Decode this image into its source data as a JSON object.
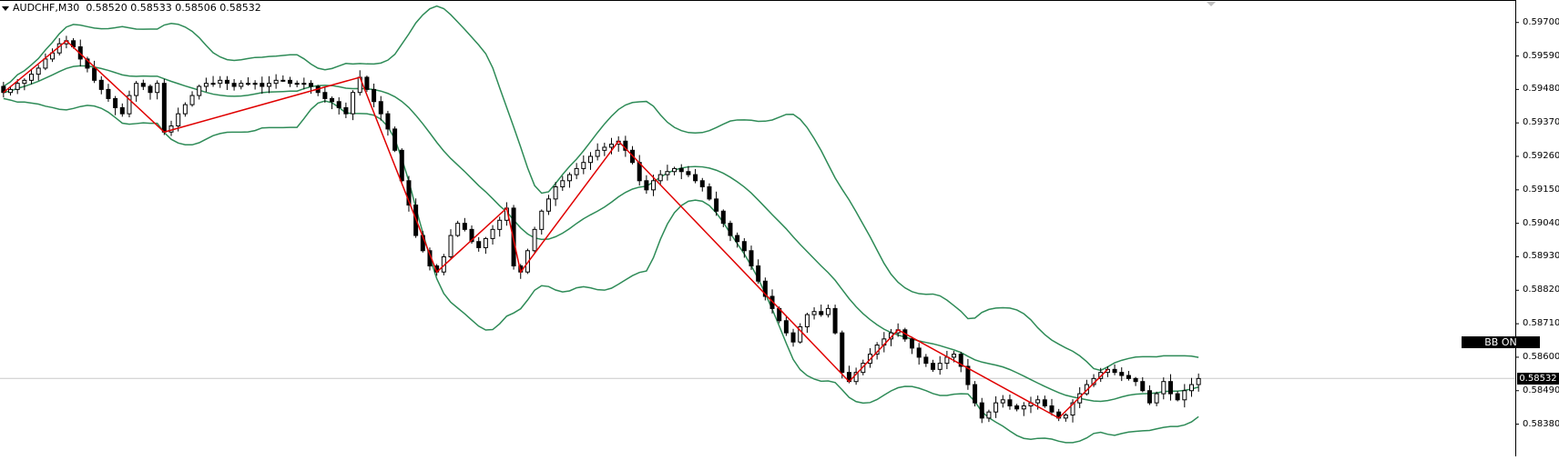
{
  "header": {
    "symbol": "AUDCHF,M30",
    "ohlc": "0.58520 0.58533 0.58506 0.58532"
  },
  "bb_button": {
    "label": "BB ON"
  },
  "current_price": {
    "label": "0.58532",
    "value": 0.58532
  },
  "colors": {
    "candle": "#000000",
    "bands": "#2e8b57",
    "zigzag": "#e00000",
    "grid": "#c8c8c8"
  },
  "chart_data": {
    "type": "candlestick",
    "y_ticks": [
      "0.59700",
      "0.59590",
      "0.59480",
      "0.59370",
      "0.59260",
      "0.59150",
      "0.59040",
      "0.58930",
      "0.58820",
      "0.58710",
      "0.58600",
      "0.58490",
      "0.58380"
    ],
    "ylim": [
      0.5831,
      0.5975
    ],
    "closes": [
      0.5947,
      0.5948,
      0.595,
      0.5951,
      0.5953,
      0.5955,
      0.5958,
      0.596,
      0.5963,
      0.5964,
      0.5962,
      0.5958,
      0.5955,
      0.5951,
      0.5948,
      0.5945,
      0.5942,
      0.594,
      0.5946,
      0.595,
      0.5949,
      0.5947,
      0.595,
      0.5934,
      0.5936,
      0.594,
      0.5943,
      0.5946,
      0.5949,
      0.595,
      0.595,
      0.5951,
      0.595,
      0.5949,
      0.595,
      0.595,
      0.595,
      0.5949,
      0.595,
      0.5951,
      0.5951,
      0.595,
      0.595,
      0.595,
      0.5949,
      0.5947,
      0.5945,
      0.5944,
      0.5942,
      0.594,
      0.5947,
      0.5952,
      0.5948,
      0.5944,
      0.594,
      0.5935,
      0.5928,
      0.5918,
      0.591,
      0.59,
      0.5895,
      0.589,
      0.5888,
      0.5893,
      0.59,
      0.5904,
      0.5902,
      0.5898,
      0.5896,
      0.5899,
      0.5902,
      0.5905,
      0.5909,
      0.589,
      0.5888,
      0.5895,
      0.5902,
      0.5908,
      0.5912,
      0.5916,
      0.5918,
      0.592,
      0.5922,
      0.5924,
      0.5926,
      0.5928,
      0.5929,
      0.593,
      0.5931,
      0.5928,
      0.5924,
      0.5918,
      0.5915,
      0.5918,
      0.592,
      0.5921,
      0.5922,
      0.5921,
      0.592,
      0.5918,
      0.5916,
      0.5912,
      0.5908,
      0.5904,
      0.59,
      0.5898,
      0.5895,
      0.589,
      0.5885,
      0.588,
      0.5876,
      0.5872,
      0.5868,
      0.5865,
      0.587,
      0.5874,
      0.5875,
      0.5874,
      0.5876,
      0.5868,
      0.5855,
      0.5852,
      0.5855,
      0.5858,
      0.5861,
      0.5864,
      0.5866,
      0.5868,
      0.5869,
      0.5866,
      0.5863,
      0.586,
      0.5858,
      0.5856,
      0.5858,
      0.586,
      0.5861,
      0.5857,
      0.5851,
      0.5845,
      0.584,
      0.5842,
      0.5845,
      0.5846,
      0.5844,
      0.5843,
      0.5844,
      0.5845,
      0.5846,
      0.5844,
      0.5842,
      0.584,
      0.5841,
      0.5845,
      0.5848,
      0.5851,
      0.5853,
      0.5855,
      0.5856,
      0.5855,
      0.5854,
      0.5853,
      0.5852,
      0.5849,
      0.5845,
      0.5848,
      0.5852,
      0.5848,
      0.5846,
      0.5849,
      0.5851,
      0.5853
    ]
  }
}
